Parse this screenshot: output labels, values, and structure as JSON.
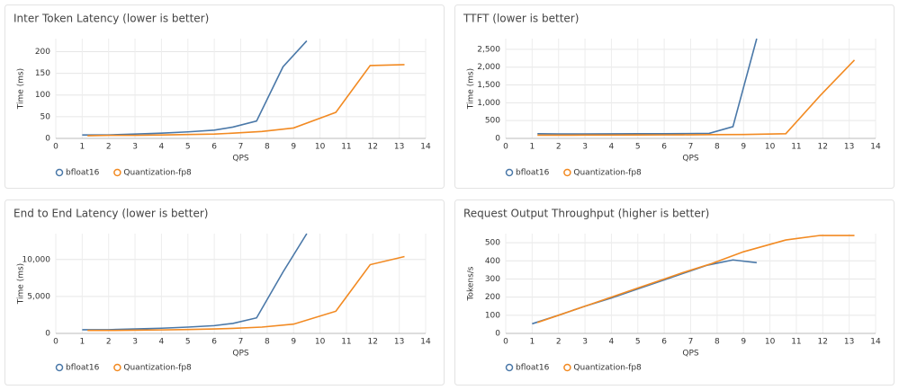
{
  "chart_data": [
    {
      "type": "line",
      "title": "Inter Token Latency (lower is better)",
      "xlabel": "QPS",
      "ylabel": "Time (ms)",
      "xlim": [
        0,
        14
      ],
      "xticks": [
        0,
        1,
        2,
        3,
        4,
        5,
        6,
        7,
        8,
        9,
        10,
        11,
        12,
        13,
        14
      ],
      "ylim": [
        0,
        230
      ],
      "yticks": [
        0,
        50,
        100,
        150,
        200
      ],
      "grid": true,
      "legend": "bottom-left",
      "series": [
        {
          "name": "bfloat16",
          "color": "#4a78a8",
          "x": [
            1,
            2,
            3,
            4,
            5,
            6,
            6.7,
            7.6,
            8.6,
            9.5
          ],
          "values": [
            8,
            8,
            10,
            12,
            15,
            19,
            26,
            40,
            165,
            225
          ]
        },
        {
          "name": "Quantization-fp8",
          "color": "#f28a22",
          "x": [
            1.2,
            2,
            3,
            4,
            5,
            6,
            6.7,
            7.8,
            9,
            10.6,
            11.9,
            13.2
          ],
          "values": [
            6,
            7,
            7,
            8,
            9,
            10,
            12,
            16,
            24,
            60,
            168,
            170
          ]
        }
      ]
    },
    {
      "type": "line",
      "title": "TTFT (lower is better)",
      "xlabel": "QPS",
      "ylabel": "Time (ms)",
      "xlim": [
        0,
        14
      ],
      "xticks": [
        0,
        1,
        2,
        3,
        4,
        5,
        6,
        7,
        8,
        9,
        10,
        11,
        12,
        13,
        14
      ],
      "ylim": [
        0,
        2800
      ],
      "yticks": [
        0,
        500,
        {
          "value": 1000,
          "label": "1,000"
        },
        {
          "value": 1500,
          "label": "1,500"
        },
        {
          "value": 2000,
          "label": "2,000"
        },
        {
          "value": 2500,
          "label": "2,500"
        }
      ],
      "grid": true,
      "legend": "bottom-left",
      "series": [
        {
          "name": "bfloat16",
          "color": "#4a78a8",
          "x": [
            1.2,
            2,
            3,
            4,
            5,
            6,
            6.7,
            7.7,
            8.6,
            9.5
          ],
          "values": [
            130,
            125,
            125,
            128,
            130,
            132,
            135,
            140,
            330,
            2800
          ]
        },
        {
          "name": "Quantization-fp8",
          "color": "#f28a22",
          "x": [
            1.2,
            2,
            3,
            4,
            5,
            6,
            6.7,
            7.8,
            9,
            10.6,
            11.9,
            13.2
          ],
          "values": [
            90,
            90,
            92,
            94,
            96,
            98,
            100,
            105,
            110,
            130,
            1200,
            2200
          ]
        }
      ]
    },
    {
      "type": "line",
      "title": "End to End Latency (lower is better)",
      "xlabel": "QPS",
      "ylabel": "Time (ms)",
      "xlim": [
        0,
        14
      ],
      "xticks": [
        0,
        1,
        2,
        3,
        4,
        5,
        6,
        7,
        8,
        9,
        10,
        11,
        12,
        13,
        14
      ],
      "ylim": [
        0,
        13500
      ],
      "yticks": [
        0,
        {
          "value": 5000,
          "label": "5,000"
        },
        {
          "value": 10000,
          "label": "10,000"
        }
      ],
      "grid": true,
      "legend": "bottom-left",
      "series": [
        {
          "name": "bfloat16",
          "color": "#4a78a8",
          "x": [
            1,
            2,
            3,
            4,
            5,
            6,
            6.7,
            7.6,
            8.6,
            9.5
          ],
          "values": [
            500,
            500,
            600,
            700,
            850,
            1050,
            1350,
            2100,
            8300,
            13500
          ]
        },
        {
          "name": "Quantization-fp8",
          "color": "#f28a22",
          "x": [
            1.2,
            2,
            3,
            4,
            5,
            6,
            6.7,
            7.8,
            9,
            10.6,
            11.9,
            13.2
          ],
          "values": [
            400,
            400,
            430,
            470,
            520,
            600,
            680,
            850,
            1250,
            3000,
            9300,
            10400
          ]
        }
      ]
    },
    {
      "type": "line",
      "title": "Request Output Throughput (higher is better)",
      "xlabel": "QPS",
      "ylabel": "Tokens/s",
      "xlim": [
        0,
        14
      ],
      "xticks": [
        0,
        1,
        2,
        3,
        4,
        5,
        6,
        7,
        8,
        9,
        10,
        11,
        12,
        13,
        14
      ],
      "ylim": [
        0,
        550
      ],
      "yticks": [
        0,
        100,
        200,
        300,
        400,
        500
      ],
      "grid": true,
      "legend": "bottom-left",
      "series": [
        {
          "name": "bfloat16",
          "color": "#4a78a8",
          "x": [
            1,
            2,
            3,
            4,
            5,
            6,
            6.7,
            7.6,
            8.6,
            9.5
          ],
          "values": [
            53,
            100,
            150,
            195,
            245,
            295,
            330,
            375,
            405,
            390
          ]
        },
        {
          "name": "Quantization-fp8",
          "color": "#f28a22",
          "x": [
            1.2,
            2,
            3,
            4,
            5,
            6,
            6.7,
            7.8,
            9,
            10.6,
            11.9,
            13.2
          ],
          "values": [
            60,
            100,
            150,
            200,
            250,
            300,
            335,
            385,
            450,
            515,
            540,
            540
          ]
        }
      ]
    }
  ]
}
